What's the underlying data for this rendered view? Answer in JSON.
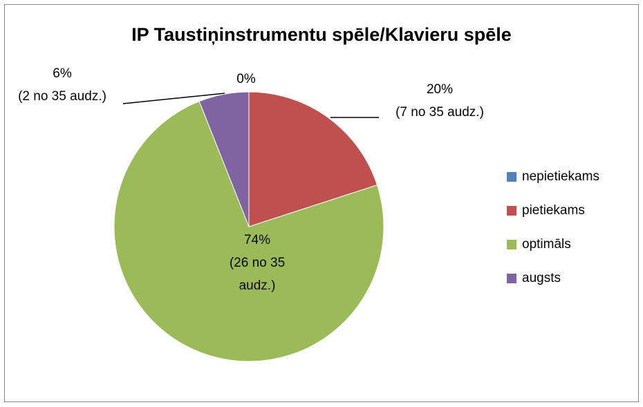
{
  "chart_data": {
    "type": "pie",
    "title": "IP Taustiņinstrumentu spēle/Klavieru spēle",
    "categories": [
      "nepietiekams",
      "pietiekams",
      "optimāls",
      "augsts"
    ],
    "values": [
      0,
      20,
      74,
      6
    ],
    "value_labels": [
      "0%",
      "20%\n(7 no 35 audz.)",
      "74%\n(26 no 35\naudz.)",
      "6%\n(2 no 35 audz.)"
    ],
    "colors": [
      "#4f81bd",
      "#c0504d",
      "#9bbb59",
      "#8064a2"
    ],
    "legend": "right"
  }
}
